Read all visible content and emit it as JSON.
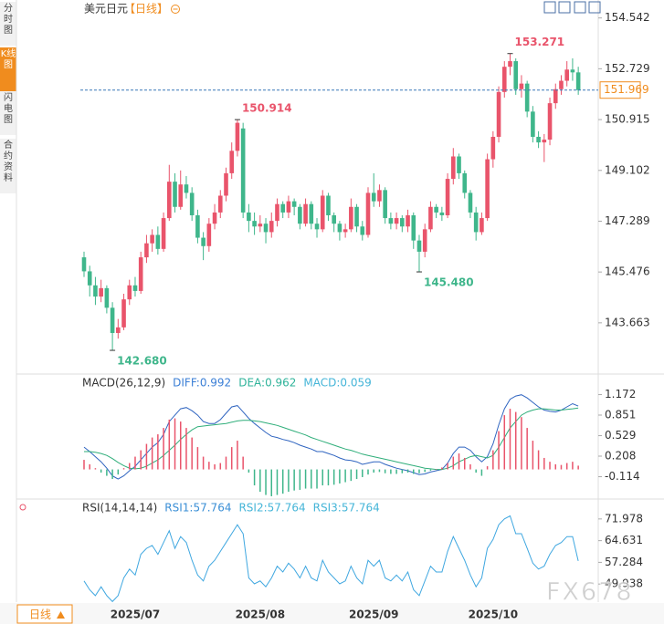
{
  "header": {
    "symbol": "美元日元",
    "period": "【日线】"
  },
  "sidebar": [
    "分时图",
    "K线图",
    "闪电图",
    "合约资料"
  ],
  "bottom_bar": {
    "period": "日线"
  },
  "watermark": "FX678",
  "chart_data": [
    {
      "type": "candlestick",
      "categories": [
        null,
        null,
        null,
        null,
        null,
        null,
        null,
        null,
        null,
        "2025/07",
        null,
        null,
        null,
        null,
        null,
        null,
        null,
        null,
        null,
        null,
        null,
        null,
        null,
        null,
        null,
        null,
        null,
        null,
        null,
        null,
        null,
        "2025/08",
        null,
        null,
        null,
        null,
        null,
        null,
        null,
        null,
        null,
        null,
        null,
        null,
        null,
        null,
        null,
        null,
        null,
        null,
        null,
        "2025/09",
        null,
        null,
        null,
        null,
        null,
        null,
        null,
        null,
        null,
        null,
        null,
        null,
        null,
        null,
        null,
        null,
        null,
        null,
        null,
        null,
        "2025/10",
        null,
        null,
        null,
        null,
        null,
        null,
        null,
        null,
        null,
        null,
        null,
        null,
        null,
        null,
        null
      ],
      "ohlc": [
        [
          146.0,
          146.2,
          145.3,
          145.5
        ],
        [
          145.5,
          145.7,
          144.6,
          145.0
        ],
        [
          145.0,
          145.3,
          144.3,
          144.6
        ],
        [
          144.6,
          145.2,
          144.4,
          144.9
        ],
        [
          144.9,
          145.0,
          144.0,
          144.2
        ],
        [
          144.2,
          144.4,
          142.68,
          143.3
        ],
        [
          143.3,
          143.8,
          143.1,
          143.5
        ],
        [
          143.5,
          144.7,
          143.4,
          144.5
        ],
        [
          144.5,
          145.2,
          144.3,
          145.0
        ],
        [
          145.0,
          145.3,
          144.6,
          144.8
        ],
        [
          144.8,
          146.2,
          144.7,
          146.0
        ],
        [
          146.0,
          146.8,
          145.8,
          146.5
        ],
        [
          146.5,
          147.0,
          146.2,
          146.8
        ],
        [
          146.8,
          147.1,
          146.1,
          146.3
        ],
        [
          146.3,
          147.6,
          146.2,
          147.4
        ],
        [
          147.4,
          149.3,
          147.3,
          148.7
        ],
        [
          148.7,
          149.0,
          147.6,
          147.8
        ],
        [
          147.8,
          149.1,
          147.7,
          148.6
        ],
        [
          148.6,
          148.9,
          148.1,
          148.3
        ],
        [
          148.3,
          148.5,
          147.3,
          147.5
        ],
        [
          147.5,
          147.7,
          146.5,
          146.7
        ],
        [
          146.7,
          146.9,
          145.9,
          146.4
        ],
        [
          146.4,
          147.4,
          146.2,
          147.2
        ],
        [
          147.2,
          147.9,
          147.0,
          147.6
        ],
        [
          147.6,
          148.4,
          147.4,
          148.2
        ],
        [
          148.2,
          149.2,
          148.0,
          149.0
        ],
        [
          149.0,
          150.1,
          148.8,
          149.8
        ],
        [
          149.8,
          150.914,
          149.6,
          150.8
        ],
        [
          150.6,
          150.8,
          147.4,
          147.6
        ],
        [
          147.6,
          147.9,
          146.9,
          147.3
        ],
        [
          147.3,
          147.6,
          146.8,
          147.1
        ],
        [
          147.1,
          147.5,
          146.9,
          147.2
        ],
        [
          147.2,
          147.4,
          146.5,
          146.9
        ],
        [
          146.9,
          147.6,
          146.7,
          147.3
        ],
        [
          147.3,
          148.1,
          147.1,
          147.9
        ],
        [
          147.9,
          148.0,
          147.4,
          147.6
        ],
        [
          147.6,
          148.2,
          147.4,
          148.0
        ],
        [
          148.0,
          148.1,
          147.5,
          147.8
        ],
        [
          147.8,
          147.9,
          147.0,
          147.2
        ],
        [
          147.2,
          148.1,
          147.1,
          147.9
        ],
        [
          147.9,
          148.0,
          147.0,
          147.2
        ],
        [
          147.2,
          147.4,
          146.7,
          147.0
        ],
        [
          147.0,
          148.4,
          146.9,
          148.2
        ],
        [
          148.2,
          148.3,
          147.3,
          147.5
        ],
        [
          147.5,
          147.6,
          146.9,
          147.2
        ],
        [
          147.2,
          147.3,
          146.6,
          146.9
        ],
        [
          146.9,
          147.2,
          146.7,
          147.0
        ],
        [
          147.0,
          148.1,
          146.9,
          147.8
        ],
        [
          147.8,
          147.9,
          146.9,
          147.1
        ],
        [
          147.1,
          147.3,
          146.6,
          146.8
        ],
        [
          146.8,
          148.5,
          146.7,
          148.3
        ],
        [
          148.3,
          149.0,
          147.8,
          148.0
        ],
        [
          148.0,
          148.6,
          147.8,
          148.4
        ],
        [
          148.4,
          148.5,
          147.2,
          147.4
        ],
        [
          147.4,
          147.6,
          147.0,
          147.2
        ],
        [
          147.2,
          147.6,
          147.0,
          147.4
        ],
        [
          147.4,
          147.5,
          146.9,
          147.1
        ],
        [
          147.1,
          147.7,
          146.9,
          147.5
        ],
        [
          147.5,
          147.6,
          146.3,
          146.6
        ],
        [
          146.6,
          146.8,
          145.48,
          146.2
        ],
        [
          146.2,
          147.2,
          146.0,
          147.0
        ],
        [
          147.0,
          148.0,
          146.9,
          147.8
        ],
        [
          147.8,
          147.9,
          147.4,
          147.6
        ],
        [
          147.6,
          147.8,
          147.3,
          147.5
        ],
        [
          147.5,
          149.0,
          147.4,
          148.8
        ],
        [
          148.8,
          149.9,
          148.6,
          149.6
        ],
        [
          149.6,
          149.7,
          148.8,
          149.0
        ],
        [
          149.0,
          149.1,
          148.1,
          148.3
        ],
        [
          148.3,
          148.4,
          147.4,
          147.6
        ],
        [
          147.6,
          147.8,
          146.6,
          146.9
        ],
        [
          146.9,
          147.6,
          146.8,
          147.4
        ],
        [
          147.4,
          149.7,
          147.3,
          149.5
        ],
        [
          149.5,
          150.5,
          149.2,
          150.3
        ],
        [
          150.3,
          152.1,
          150.1,
          151.9
        ],
        [
          151.9,
          153.0,
          151.7,
          152.8
        ],
        [
          152.8,
          153.271,
          152.5,
          153.0
        ],
        [
          153.0,
          153.1,
          151.8,
          152.0
        ],
        [
          152.0,
          152.5,
          151.7,
          152.2
        ],
        [
          152.2,
          152.3,
          151.0,
          151.2
        ],
        [
          151.2,
          151.4,
          150.1,
          150.3
        ],
        [
          150.3,
          150.5,
          149.9,
          150.1
        ],
        [
          150.1,
          150.4,
          149.4,
          150.2
        ],
        [
          150.2,
          151.7,
          150.0,
          151.5
        ],
        [
          151.5,
          152.2,
          151.3,
          152.0
        ],
        [
          152.0,
          152.5,
          151.8,
          152.3
        ],
        [
          152.3,
          153.0,
          152.1,
          152.7
        ],
        [
          152.7,
          153.1,
          152.3,
          152.6
        ],
        [
          152.6,
          152.8,
          151.8,
          151.969
        ]
      ],
      "ylim": [
        141.9,
        155.02
      ],
      "yticks": [
        154.542,
        152.729,
        150.915,
        149.102,
        147.289,
        145.476,
        143.663
      ],
      "up_color": "#e9546b",
      "down_color": "#3fb68b",
      "annotations": [
        153.271,
        150.914,
        {
          "value": 145.48,
          "label": "145.480"
        },
        {
          "value": 142.68,
          "label": "142.680"
        }
      ],
      "last_price": 151.969,
      "last_price_color": "#f08c1e",
      "last_line_color": "#3a78b8"
    },
    {
      "type": "macd",
      "legend": [
        "MACD(26,12,9)",
        "DIFF:0.992",
        "DEA:0.962",
        "MACD:0.059"
      ],
      "legend_colors": [
        "#333333",
        "#3b7fd6",
        "#2fb39a",
        "#45b5d8"
      ],
      "series": [
        {
          "color": "#2f64c0",
          "values": [
            0.35,
            0.28,
            0.2,
            0.12,
            0.02,
            -0.1,
            -0.15,
            -0.1,
            -0.02,
            0.05,
            0.15,
            0.25,
            0.35,
            0.42,
            0.55,
            0.75,
            0.85,
            0.95,
            0.97,
            0.92,
            0.85,
            0.75,
            0.72,
            0.72,
            0.78,
            0.88,
            0.98,
            1.0,
            0.9,
            0.8,
            0.72,
            0.65,
            0.58,
            0.52,
            0.5,
            0.47,
            0.45,
            0.42,
            0.38,
            0.35,
            0.32,
            0.28,
            0.28,
            0.25,
            0.22,
            0.18,
            0.15,
            0.14,
            0.12,
            0.08,
            0.1,
            0.12,
            0.12,
            0.08,
            0.05,
            0.02,
            0.0,
            -0.02,
            -0.05,
            -0.08,
            -0.07,
            -0.04,
            -0.02,
            0.0,
            0.1,
            0.25,
            0.35,
            0.35,
            0.3,
            0.2,
            0.12,
            0.2,
            0.4,
            0.7,
            0.95,
            1.1,
            1.15,
            1.17,
            1.12,
            1.05,
            0.98,
            0.93,
            0.91,
            0.9,
            0.93,
            0.98,
            1.03,
            0.992
          ]
        },
        {
          "color": "#2fae7a",
          "values": [
            0.28,
            0.28,
            0.27,
            0.25,
            0.22,
            0.17,
            0.11,
            0.06,
            0.02,
            0.01,
            0.02,
            0.05,
            0.1,
            0.15,
            0.22,
            0.3,
            0.38,
            0.47,
            0.55,
            0.62,
            0.67,
            0.68,
            0.69,
            0.7,
            0.71,
            0.72,
            0.74,
            0.76,
            0.77,
            0.77,
            0.76,
            0.75,
            0.73,
            0.71,
            0.69,
            0.66,
            0.63,
            0.6,
            0.57,
            0.54,
            0.5,
            0.47,
            0.44,
            0.41,
            0.38,
            0.35,
            0.32,
            0.3,
            0.27,
            0.24,
            0.22,
            0.2,
            0.18,
            0.16,
            0.14,
            0.12,
            0.1,
            0.08,
            0.06,
            0.04,
            0.02,
            0.01,
            0.0,
            0.0,
            0.02,
            0.06,
            0.12,
            0.16,
            0.2,
            0.22,
            0.2,
            0.18,
            0.22,
            0.35,
            0.5,
            0.65,
            0.75,
            0.85,
            0.9,
            0.93,
            0.95,
            0.95,
            0.94,
            0.93,
            0.93,
            0.94,
            0.95,
            0.962
          ]
        },
        {
          "type": "histogram",
          "values": [
            0.15,
            0.08,
            0.02,
            -0.05,
            -0.1,
            -0.15,
            -0.08,
            0.02,
            0.1,
            0.2,
            0.3,
            0.4,
            0.5,
            0.55,
            0.65,
            0.78,
            0.8,
            0.75,
            0.65,
            0.5,
            0.35,
            0.2,
            0.12,
            0.08,
            0.1,
            0.2,
            0.35,
            0.45,
            0.2,
            -0.05,
            -0.25,
            -0.35,
            -0.4,
            -0.42,
            -0.4,
            -0.38,
            -0.35,
            -0.33,
            -0.32,
            -0.3,
            -0.3,
            -0.3,
            -0.25,
            -0.25,
            -0.24,
            -0.22,
            -0.2,
            -0.18,
            -0.15,
            -0.12,
            -0.08,
            -0.05,
            -0.04,
            -0.06,
            -0.07,
            -0.07,
            -0.06,
            -0.05,
            -0.07,
            -0.06,
            -0.04,
            -0.02,
            0.0,
            0.03,
            0.1,
            0.2,
            0.25,
            0.18,
            0.08,
            -0.05,
            -0.1,
            0.05,
            0.3,
            0.6,
            0.85,
            0.95,
            0.9,
            0.82,
            0.65,
            0.45,
            0.3,
            0.18,
            0.12,
            0.08,
            0.07,
            0.1,
            0.12,
            0.059
          ]
        }
      ],
      "ylim": [
        -0.435,
        1.437
      ],
      "yticks": [
        1.172,
        0.851,
        0.529,
        0.208,
        -0.114
      ],
      "up_color": "#e9546b",
      "down_color": "#3fb68b"
    },
    {
      "type": "rsi",
      "legend": [
        "RSI(14,14,14)",
        "RSI1:57.764",
        "RSI2:57.764",
        "RSI3:57.764"
      ],
      "legend_colors": [
        "#333333",
        "#3b8fd6",
        "#45b5d8",
        "#45b5d8"
      ],
      "series": [
        {
          "color": "#3fa7e0",
          "values": [
            51,
            48,
            46,
            49,
            46,
            44,
            46,
            52,
            55,
            53,
            60,
            62,
            63,
            60,
            64,
            68,
            62,
            66,
            64,
            58,
            53,
            51,
            56,
            58,
            61,
            64,
            67,
            70,
            67,
            52,
            50,
            51,
            49,
            52,
            56,
            54,
            57,
            55,
            52,
            56,
            52,
            51,
            58,
            54,
            52,
            50,
            51,
            56,
            52,
            50,
            58,
            56,
            58,
            52,
            51,
            53,
            51,
            54,
            48,
            46,
            51,
            56,
            54,
            54,
            61,
            66,
            62,
            58,
            53,
            49,
            52,
            62,
            65,
            70,
            72,
            73,
            67,
            67,
            62,
            57,
            55,
            56,
            60,
            63,
            64,
            66,
            66,
            57.764
          ]
        }
      ],
      "ylim": [
        43.82,
        77.49
      ],
      "yticks": [
        71.978,
        64.631,
        57.284,
        49.938
      ]
    }
  ]
}
